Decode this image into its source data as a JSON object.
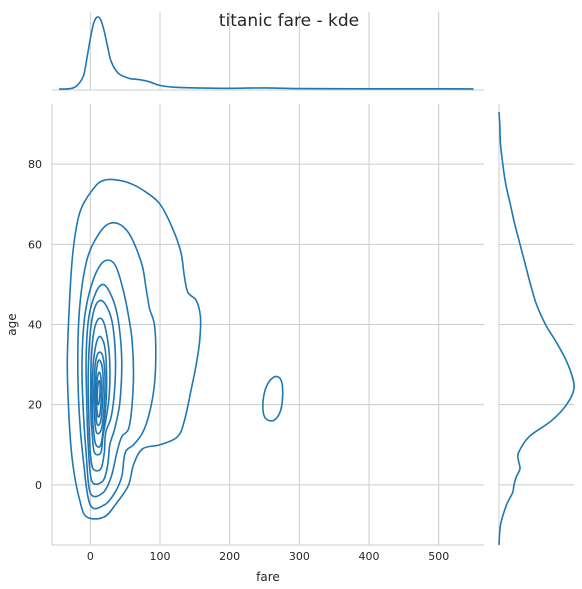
{
  "chart_data": {
    "type": "kde",
    "title": "titanic fare - kde",
    "xlabel": "fare",
    "ylabel": "age",
    "xlim": [
      -55,
      565
    ],
    "ylim": [
      -15,
      95
    ],
    "xticks": [
      0,
      100,
      200,
      300,
      400,
      500
    ],
    "yticks": [
      0,
      20,
      40,
      60,
      80
    ],
    "grid": true,
    "color": "#1f77b4",
    "joint_contours": [
      [
        [
          -5,
          -8
        ],
        [
          20,
          -8
        ],
        [
          40,
          -4
        ],
        [
          55,
          0
        ],
        [
          62,
          5
        ],
        [
          75,
          9
        ],
        [
          100,
          10
        ],
        [
          125,
          12
        ],
        [
          135,
          16
        ],
        [
          145,
          24
        ],
        [
          152,
          30
        ],
        [
          157,
          36
        ],
        [
          158,
          42
        ],
        [
          152,
          46
        ],
        [
          140,
          48
        ],
        [
          135,
          52
        ],
        [
          130,
          58
        ],
        [
          118,
          64
        ],
        [
          100,
          70
        ],
        [
          80,
          73
        ],
        [
          60,
          75
        ],
        [
          40,
          76
        ],
        [
          20,
          76
        ],
        [
          5,
          74
        ],
        [
          -15,
          68
        ],
        [
          -25,
          58
        ],
        [
          -30,
          45
        ],
        [
          -33,
          30
        ],
        [
          -30,
          15
        ],
        [
          -25,
          5
        ],
        [
          -15,
          -4
        ]
      ],
      [
        [
          0,
          -5
        ],
        [
          20,
          -5
        ],
        [
          35,
          -2
        ],
        [
          45,
          2
        ],
        [
          50,
          8
        ],
        [
          62,
          10
        ],
        [
          75,
          13
        ],
        [
          85,
          18
        ],
        [
          92,
          25
        ],
        [
          94,
          33
        ],
        [
          92,
          40
        ],
        [
          85,
          44
        ],
        [
          80,
          49
        ],
        [
          74,
          55
        ],
        [
          58,
          62
        ],
        [
          42,
          65
        ],
        [
          25,
          65
        ],
        [
          10,
          62
        ],
        [
          -5,
          56
        ],
        [
          -15,
          45
        ],
        [
          -18,
          32
        ],
        [
          -16,
          18
        ],
        [
          -10,
          6
        ]
      ],
      [
        [
          0,
          -2
        ],
        [
          18,
          -2
        ],
        [
          30,
          2
        ],
        [
          38,
          8
        ],
        [
          45,
          12
        ],
        [
          55,
          14
        ],
        [
          60,
          20
        ],
        [
          62,
          28
        ],
        [
          60,
          36
        ],
        [
          55,
          42
        ],
        [
          48,
          48
        ],
        [
          38,
          54
        ],
        [
          28,
          56
        ],
        [
          15,
          55
        ],
        [
          2,
          50
        ],
        [
          -8,
          42
        ],
        [
          -12,
          30
        ],
        [
          -10,
          18
        ],
        [
          -6,
          8
        ]
      ],
      [
        [
          2,
          1
        ],
        [
          18,
          1
        ],
        [
          25,
          5
        ],
        [
          28,
          10
        ],
        [
          35,
          14
        ],
        [
          42,
          20
        ],
        [
          45,
          28
        ],
        [
          44,
          35
        ],
        [
          38,
          43
        ],
        [
          28,
          48
        ],
        [
          18,
          50
        ],
        [
          8,
          48
        ],
        [
          -2,
          42
        ],
        [
          -6,
          32
        ],
        [
          -5,
          20
        ],
        [
          -3,
          10
        ]
      ],
      [
        [
          4,
          4
        ],
        [
          15,
          4
        ],
        [
          20,
          8
        ],
        [
          22,
          13
        ],
        [
          30,
          17
        ],
        [
          35,
          24
        ],
        [
          36,
          32
        ],
        [
          32,
          40
        ],
        [
          25,
          44
        ],
        [
          15,
          46
        ],
        [
          6,
          44
        ],
        [
          0,
          38
        ],
        [
          -3,
          28
        ],
        [
          -2,
          16
        ],
        [
          0,
          8
        ]
      ],
      [
        [
          6,
          8
        ],
        [
          15,
          8
        ],
        [
          18,
          12
        ],
        [
          22,
          16
        ],
        [
          27,
          22
        ],
        [
          28,
          30
        ],
        [
          25,
          36
        ],
        [
          18,
          41
        ],
        [
          10,
          41
        ],
        [
          4,
          37
        ],
        [
          1,
          29
        ],
        [
          1,
          18
        ],
        [
          3,
          12
        ]
      ],
      [
        [
          8,
          10
        ],
        [
          15,
          10
        ],
        [
          20,
          16
        ],
        [
          23,
          22
        ],
        [
          23,
          30
        ],
        [
          20,
          35
        ],
        [
          13,
          37
        ],
        [
          7,
          34
        ],
        [
          3,
          27
        ],
        [
          3,
          18
        ],
        [
          5,
          13
        ]
      ],
      [
        [
          9,
          13
        ],
        [
          16,
          14
        ],
        [
          20,
          20
        ],
        [
          21,
          27
        ],
        [
          18,
          32
        ],
        [
          12,
          33
        ],
        [
          7,
          30
        ],
        [
          5,
          23
        ],
        [
          6,
          17
        ]
      ],
      [
        [
          10,
          15
        ],
        [
          15,
          16
        ],
        [
          18,
          22
        ],
        [
          18,
          28
        ],
        [
          14,
          31
        ],
        [
          10,
          30
        ],
        [
          7,
          24
        ],
        [
          8,
          18
        ]
      ],
      [
        [
          11,
          17
        ],
        [
          14,
          18
        ],
        [
          16,
          23
        ],
        [
          15,
          27
        ],
        [
          12,
          28
        ],
        [
          9,
          25
        ],
        [
          9,
          20
        ]
      ],
      [
        [
          11,
          20
        ],
        [
          13,
          21
        ],
        [
          14,
          24
        ],
        [
          13,
          26
        ],
        [
          11,
          25
        ],
        [
          10,
          22
        ]
      ],
      [
        [
          250,
          17
        ],
        [
          262,
          16
        ],
        [
          272,
          18
        ],
        [
          276,
          22
        ],
        [
          274,
          26
        ],
        [
          265,
          27
        ],
        [
          254,
          25
        ],
        [
          248,
          21
        ]
      ]
    ],
    "marginal_x": {
      "x": [
        -45,
        -30,
        -20,
        -10,
        -5,
        0,
        5,
        10,
        15,
        20,
        25,
        30,
        40,
        55,
        70,
        85,
        100,
        120,
        150,
        200,
        250,
        300,
        350,
        400,
        450,
        500,
        550
      ],
      "density": [
        0,
        0.004,
        0.04,
        0.18,
        0.42,
        0.7,
        0.92,
        1.0,
        0.96,
        0.8,
        0.58,
        0.38,
        0.22,
        0.15,
        0.13,
        0.1,
        0.05,
        0.025,
        0.015,
        0.01,
        0.015,
        0.006,
        0.004,
        0.003,
        0.003,
        0.003,
        0.002
      ]
    },
    "marginal_y": {
      "y": [
        -15,
        -10,
        -5,
        -2,
        0,
        2,
        4,
        6,
        8,
        12,
        16,
        20,
        24,
        28,
        32,
        36,
        40,
        45,
        50,
        55,
        60,
        65,
        70,
        75,
        80,
        85,
        90,
        93
      ],
      "density": [
        0,
        0.02,
        0.1,
        0.18,
        0.2,
        0.23,
        0.28,
        0.26,
        0.26,
        0.4,
        0.7,
        0.9,
        1.0,
        0.96,
        0.87,
        0.75,
        0.62,
        0.5,
        0.42,
        0.35,
        0.28,
        0.21,
        0.15,
        0.09,
        0.05,
        0.02,
        0.01,
        0
      ]
    }
  }
}
